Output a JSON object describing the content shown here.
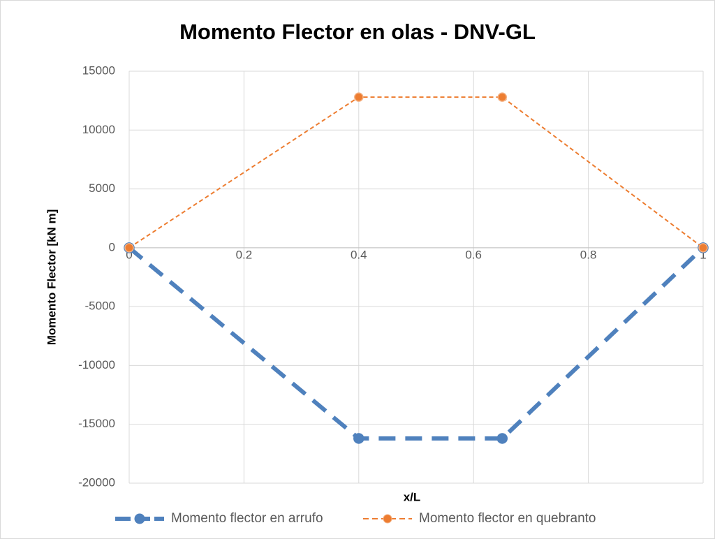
{
  "chart_data": {
    "type": "scatter",
    "title": "Momento Flector en olas - DNV-GL",
    "x_label": "x/L",
    "y_label": "Momento Flector [kN m]",
    "xlim": [
      0,
      1
    ],
    "xticks": [
      0,
      0.2,
      0.4,
      0.6,
      0.8,
      1
    ],
    "ylim": [
      -20000,
      15000
    ],
    "yticks": [
      -20000,
      -15000,
      -10000,
      -5000,
      0,
      5000,
      10000,
      15000
    ],
    "grid": true,
    "legend": "bottom",
    "series": [
      {
        "name": "Momento flector en arrufo",
        "color": "#4f81bd",
        "x": [
          0,
          0.4,
          0.65,
          1
        ],
        "values": [
          0,
          -16200,
          -16200,
          0
        ]
      },
      {
        "name": "Momento flector en quebranto",
        "color": "#ed7d31",
        "x": [
          0,
          0.4,
          0.65,
          1
        ],
        "values": [
          0,
          12800,
          12800,
          0
        ]
      }
    ]
  }
}
